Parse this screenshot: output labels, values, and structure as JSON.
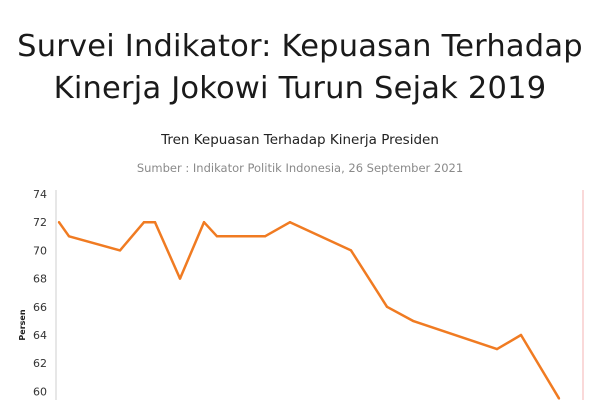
{
  "headline": {
    "line1": "Survei Indikator: Kepuasan Terhadap",
    "line2": "Kinerja Jokowi Turun Sejak 2019"
  },
  "chart_data": {
    "type": "line",
    "title": "Tren Kepuasan Terhadap Kinerja Presiden",
    "subtitle": "Sumber : Indikator Politik Indonesia, 26 September 2021",
    "ylabel": "Persen",
    "xlabel": "",
    "yticks": [
      60,
      62,
      64,
      66,
      68,
      70,
      72,
      74
    ],
    "ylim": [
      60,
      74
    ],
    "grid": false,
    "series": [
      {
        "color": "#f07b22",
        "values": [
          72,
          71,
          70,
          72,
          72,
          68,
          72,
          71,
          71,
          72,
          70,
          66,
          65,
          63,
          64,
          59.5
        ]
      }
    ]
  }
}
